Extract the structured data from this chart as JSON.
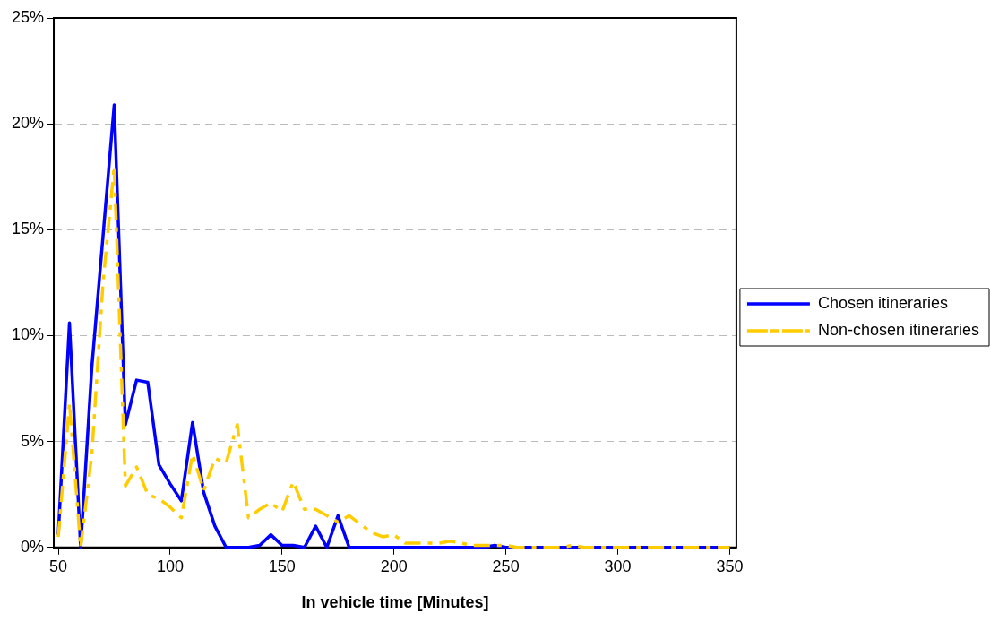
{
  "chart_data": {
    "type": "line",
    "xlabel": "In vehicle time [Minutes]",
    "x": [
      50,
      55,
      60,
      65,
      70,
      75,
      80,
      85,
      90,
      95,
      100,
      105,
      110,
      115,
      120,
      125,
      130,
      135,
      140,
      145,
      150,
      155,
      160,
      165,
      170,
      175,
      180,
      185,
      190,
      195,
      200,
      205,
      210,
      215,
      220,
      225,
      230,
      235,
      240,
      245,
      250,
      255,
      260,
      265,
      270,
      275,
      280,
      285,
      290,
      295,
      300,
      305,
      310,
      315,
      320,
      325,
      330,
      335,
      340,
      345,
      350
    ],
    "series": [
      {
        "name": "Chosen itineraries",
        "color": "#0000ff",
        "line_style": "solid",
        "values": [
          0.6,
          10.6,
          0,
          8.5,
          14.7,
          20.9,
          5.8,
          7.9,
          7.8,
          3.9,
          3.0,
          2.2,
          5.9,
          2.6,
          1.0,
          0,
          0,
          0,
          0.1,
          0.6,
          0.1,
          0.1,
          0,
          1.0,
          0,
          1.5,
          0,
          0,
          0,
          0,
          0,
          0,
          0,
          0,
          0,
          0,
          0,
          0,
          0,
          0.1,
          0,
          0,
          0,
          0,
          0,
          0,
          0,
          0,
          0,
          0,
          0,
          0,
          0,
          0,
          0,
          0,
          0,
          0,
          0,
          0,
          0
        ]
      },
      {
        "name": "Non-chosen itineraries",
        "color": "#ffcc00",
        "line_style": "dashed",
        "values": [
          0.5,
          6.8,
          0,
          4.4,
          12.5,
          18.0,
          2.9,
          3.8,
          2.5,
          2.3,
          1.9,
          1.4,
          4.4,
          2.7,
          4.2,
          4.0,
          5.8,
          1.4,
          1.8,
          2.1,
          1.7,
          3.1,
          1.8,
          1.8,
          1.5,
          1.2,
          1.5,
          1.1,
          0.7,
          0.5,
          0.6,
          0.2,
          0.2,
          0.2,
          0.2,
          0.3,
          0.2,
          0.1,
          0.1,
          0.1,
          0.1,
          0,
          0,
          0,
          0,
          0,
          0.1,
          0,
          0,
          0,
          0,
          0,
          0,
          0,
          0,
          0,
          0,
          0,
          0,
          0,
          0
        ]
      }
    ],
    "xlim": [
      48,
      353
    ],
    "xticks": [
      50,
      100,
      150,
      200,
      250,
      300,
      350
    ],
    "ylim": [
      0,
      25
    ],
    "yticks": [
      {
        "value": 0,
        "label": "0%"
      },
      {
        "value": 5,
        "label": "5%"
      },
      {
        "value": 10,
        "label": "10%"
      },
      {
        "value": 15,
        "label": "15%"
      },
      {
        "value": 20,
        "label": "20%"
      },
      {
        "value": 25,
        "label": "25%"
      }
    ],
    "grid": "y",
    "legend": "right",
    "marker": "none"
  }
}
